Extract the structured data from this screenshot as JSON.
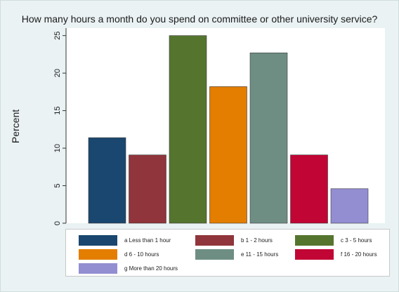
{
  "chart_data": {
    "type": "bar",
    "title": "How many hours a month do you spend on committee or other university service?",
    "ylabel": "Percent",
    "xlabel": "",
    "ylim": [
      0,
      26
    ],
    "yticks": [
      0,
      5,
      10,
      15,
      20,
      25
    ],
    "grid": false,
    "legend_position": "bottom",
    "categories": [
      "a Less than 1 hour",
      "b 1 - 2 hours",
      "c 3 - 5 hours",
      "d 6 - 10 hours",
      "e 11 - 15 hours",
      "f 16 - 20 hours",
      "g More than 20 hours"
    ],
    "values": [
      11.4,
      9.1,
      25.0,
      18.2,
      22.7,
      9.1,
      4.6
    ],
    "colors": [
      "#1a476f",
      "#90353b",
      "#55752f",
      "#e37e00",
      "#6e8e84",
      "#c10534",
      "#938dd2"
    ]
  }
}
